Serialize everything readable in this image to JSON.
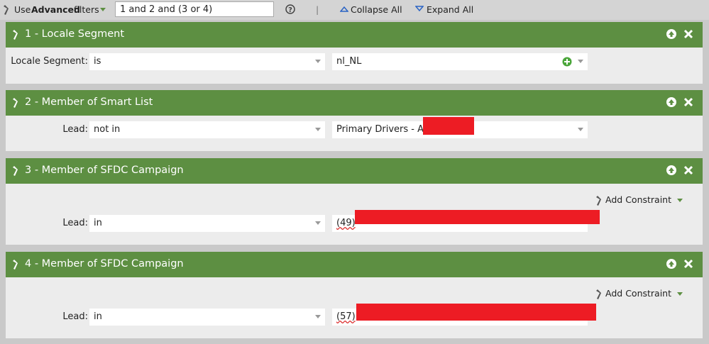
{
  "toolbar": {
    "use_label": "Use",
    "advanced_label": "Advanced",
    "filters_label": "filters",
    "filter_logic": "1 and 2 and (3 or 4)",
    "collapse_all": "Collapse All",
    "expand_all": "Expand All"
  },
  "filters": [
    {
      "title": "1 - Locale Segment",
      "field_label": "Locale Segment:",
      "operator": "is",
      "value": "nl_NL"
    },
    {
      "title": "2 - Member of Smart List",
      "field_label": "Lead:",
      "operator": "not in",
      "value": "Primary Drivers - All"
    },
    {
      "title": "3 - Member of SFDC Campaign",
      "add_constraint": "Add Constraint",
      "field_label": "Lead:",
      "operator": "in",
      "value": "(49)"
    },
    {
      "title": "4 - Member of SFDC Campaign",
      "add_constraint": "Add Constraint",
      "field_label": "Lead:",
      "operator": "in",
      "value": "(57)"
    }
  ]
}
